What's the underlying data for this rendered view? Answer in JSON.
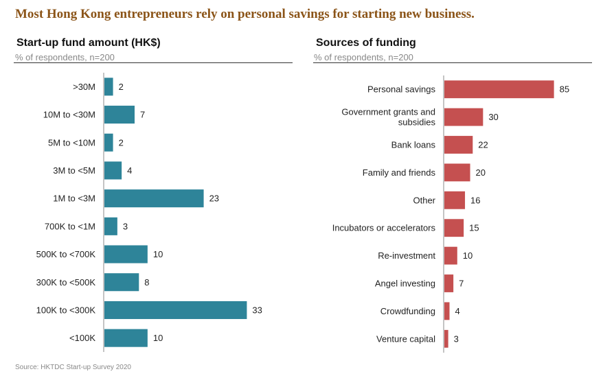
{
  "headline": "Most Hong Kong entrepreneurs rely on personal savings for starting new business.",
  "colors": {
    "left_bar": "#2E8499",
    "right_bar": "#C55050",
    "headline": "#8B5418"
  },
  "source": "Source: HKTDC Start-up Survey 2020",
  "chart_data": [
    {
      "type": "bar",
      "orientation": "horizontal",
      "title": "Start-up fund amount (HK$)",
      "subtitle": "% of respondents, n=200",
      "categories": [
        ">30M",
        "10M to <30M",
        "5M to <10M",
        "3M to <5M",
        "1M to <3M",
        "700K to <1M",
        "500K to <700K",
        "300K to <500K",
        "100K to <300K",
        "<100K"
      ],
      "values": [
        2,
        7,
        2,
        4,
        23,
        3,
        10,
        8,
        33,
        10
      ],
      "xlim": [
        0,
        35
      ]
    },
    {
      "type": "bar",
      "orientation": "horizontal",
      "title": "Sources of funding",
      "subtitle": "% of respondents, n=200",
      "categories": [
        "Personal savings",
        "Government grants and subsidies",
        "Bank loans",
        "Family and friends",
        "Other",
        "Incubators or accelerators",
        "Re-investment",
        "Angel investing",
        "Crowdfunding",
        "Venture capital"
      ],
      "values": [
        85,
        30,
        22,
        20,
        16,
        15,
        10,
        7,
        4,
        3
      ],
      "xlim": [
        0,
        90
      ]
    }
  ]
}
